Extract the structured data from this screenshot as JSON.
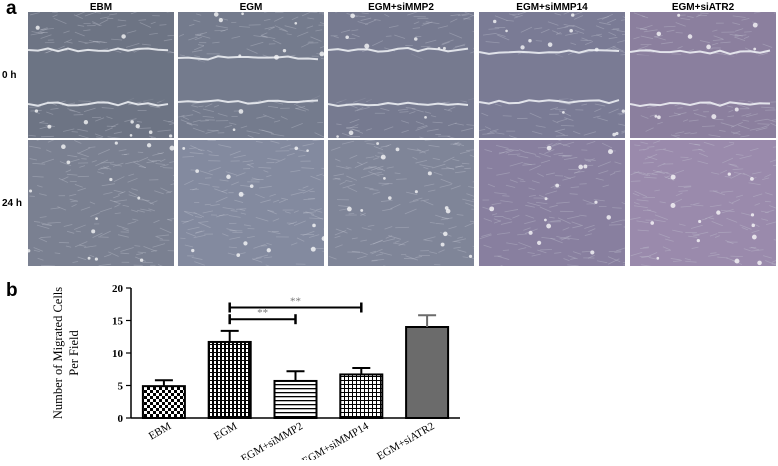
{
  "figure": {
    "panel_a_letter": "a",
    "panel_b_letter": "b",
    "columns": [
      "EBM",
      "EGM",
      "EGM+siMMP2",
      "EGM+siMMP14",
      "EGM+siATR2"
    ],
    "rows": [
      "0 h",
      "24 h"
    ],
    "colors": {
      "image_base": [
        "#6d7484",
        "#747b8d",
        "#767a90",
        "#7a7b95",
        "#8b7f9e"
      ],
      "image_base_24h": [
        "#7a8091",
        "#838a9f",
        "#7f8598",
        "#887f9f",
        "#9a8aac"
      ],
      "wound_edge": "#f2f4f8"
    }
  },
  "chart_data": {
    "type": "bar",
    "title": "",
    "xlabel": "",
    "ylabel": "Number of Migrated Cells Per Field",
    "ylabel_lines": [
      "Number of Migrated Cells",
      "Per Field"
    ],
    "categories": [
      "EBM",
      "EGM",
      "EGM+siMMP2",
      "EGM+siMMP14",
      "EGM+siATR2"
    ],
    "values": [
      4.9,
      11.7,
      5.7,
      6.7,
      14.0
    ],
    "errors": [
      0.9,
      1.7,
      1.5,
      1.0,
      1.8
    ],
    "ylim": [
      0,
      20
    ],
    "yticks": [
      0,
      5,
      10,
      15,
      20
    ],
    "patterns": [
      "checker",
      "hatch-grid",
      "horizontal-lines",
      "small-grid",
      "solid-gray"
    ],
    "significance": [
      {
        "from": "EGM",
        "to": "EGM+siMMP2",
        "label": "**"
      },
      {
        "from": "EGM",
        "to": "EGM+siMMP14",
        "label": "**"
      }
    ],
    "grid": false,
    "bar_fill_solid": "#6b6b6b"
  }
}
